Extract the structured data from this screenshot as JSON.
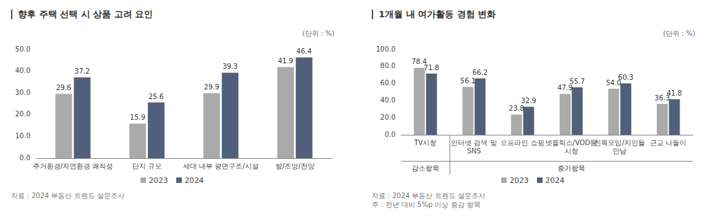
{
  "chart_data": [
    {
      "type": "bar",
      "title": "향후 주택 선택 시 상품 고려 요인",
      "subtitle": "(단위 : %)",
      "categories": [
        "주거환경/자연환경 쾌적성",
        "단지 규모",
        "세대 내부 평면구조/시설",
        "향/조망/전망"
      ],
      "series": [
        {
          "name": "2023",
          "color": "#aaaaaa",
          "values": [
            29.6,
            15.9,
            29.9,
            41.9
          ]
        },
        {
          "name": "2024",
          "color": "#505f7b",
          "values": [
            37.2,
            25.6,
            39.3,
            46.4
          ]
        }
      ],
      "ylim": [
        0,
        50
      ],
      "yticks": [
        {
          "value": 0,
          "label": "0.0"
        },
        {
          "value": 10,
          "label": "10.0"
        },
        {
          "value": 20,
          "label": "20.0"
        },
        {
          "value": 30,
          "label": "30.0"
        },
        {
          "value": 40,
          "label": "40.0"
        },
        {
          "value": 50,
          "label": "50.0"
        }
      ],
      "grid": false,
      "legend": "bottom",
      "data_labels": true,
      "source": "자료 : 2024 부동산 트렌드 설문조사"
    },
    {
      "type": "bar",
      "title": "1개월 내 여가활동 경험 변화",
      "subtitle": "(단위 : %)",
      "categories": [
        "TV시청",
        "인터넷 검색 및 SNS",
        "오프라인 쇼핑",
        "넷플릭스/VOD등 시청",
        "친목모임/지인들 만남",
        "근교 나들이"
      ],
      "groups": [
        {
          "label": "감소항목",
          "from": 0,
          "to": 0
        },
        {
          "label": "증가항목",
          "from": 1,
          "to": 5
        }
      ],
      "series": [
        {
          "name": "2023",
          "color": "#aaaaaa",
          "values": [
            78.4,
            56.1,
            23.8,
            47.9,
            54.0,
            36.3
          ],
          "value_labels": [
            "78.4",
            "56.1",
            "23.8",
            "47.9",
            "54.0",
            "36.3"
          ]
        },
        {
          "name": "2024",
          "color": "#505f7b",
          "values": [
            71.8,
            66.2,
            32.9,
            55.7,
            60.3,
            41.8
          ],
          "value_labels": [
            "71.8",
            "66.2",
            "32.9",
            "55.7",
            "60.3",
            "41.8"
          ]
        }
      ],
      "ylim": [
        0,
        100
      ],
      "yticks": [
        {
          "value": 0,
          "label": "0.0"
        },
        {
          "value": 20,
          "label": "20.0"
        },
        {
          "value": 40,
          "label": "40.0"
        },
        {
          "value": 60,
          "label": "60.0"
        },
        {
          "value": 80,
          "label": "80.0"
        },
        {
          "value": 100,
          "label": "100.0"
        }
      ],
      "grid": false,
      "legend": "bottom",
      "data_labels": true,
      "source": "자료 : 2024 부동산 트렌드 설문조사",
      "note": "주 : 전년 대비 5%p 이상 증감 항목"
    }
  ]
}
